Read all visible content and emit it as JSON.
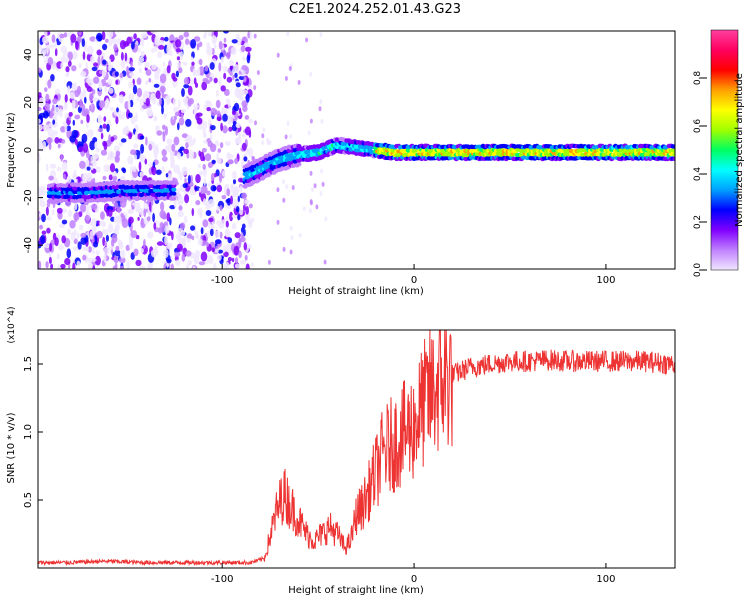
{
  "page": {
    "title": "C2E1.2024.252.01.43.G23"
  },
  "chart_data": [
    {
      "type": "heatmap",
      "xlabel": "Height of straight line (km)",
      "ylabel": "Frequency (Hz)",
      "xlim": [
        -196,
        136
      ],
      "ylim": [
        -50,
        50
      ],
      "xticks": [
        -100,
        0,
        100
      ],
      "xtick_labels": [
        "-100",
        "0",
        "100"
      ],
      "yticks": [
        -40,
        -20,
        0,
        20,
        40
      ],
      "ytick_labels": [
        "-40",
        "-20",
        "0",
        "20",
        "40"
      ],
      "colorbar": {
        "label": "Normalized spectral amplitude",
        "ticks": [
          0.0,
          0.2,
          0.4,
          0.6,
          0.8
        ],
        "tick_labels": [
          "0.0",
          "0.2",
          "0.4",
          "0.6",
          "0.8"
        ],
        "colors": [
          "#f0e6ff",
          "#c080ff",
          "#8000ff",
          "#0000ff",
          "#00a0ff",
          "#00ffff",
          "#00ff60",
          "#a0ff00",
          "#ffff00",
          "#ffa000",
          "#ff0000",
          "#ff0060",
          "#ff40a0"
        ]
      },
      "ridge": {
        "x": [
          -190,
          -170,
          -150,
          -125,
          -90,
          -80,
          -70,
          -60,
          -50,
          -40,
          -30,
          -20,
          -10,
          0,
          20,
          40,
          60,
          80,
          100,
          120,
          136
        ],
        "y": [
          -18,
          -18,
          -17,
          -17,
          -12,
          -8,
          -4,
          -2,
          -1,
          2,
          1,
          0,
          -1,
          -1,
          -1,
          -1,
          -1,
          -1,
          -1,
          -1,
          -1
        ]
      },
      "noise_region_x": [
        -196,
        -85
      ]
    },
    {
      "type": "line",
      "xlabel": "Height of straight line (km)",
      "ylabel": "SNR (10 * v/v)",
      "y_multiplier": "(x10^4)",
      "xlim": [
        -196,
        136
      ],
      "ylim": [
        0,
        1.75
      ],
      "xticks": [
        -100,
        0,
        100
      ],
      "xtick_labels": [
        "-100",
        "0",
        "100"
      ],
      "yticks": [
        0.5,
        1.0,
        1.5
      ],
      "ytick_labels": [
        "0.5",
        "1.0",
        "1.5"
      ],
      "line_color": "#ee3333",
      "series": [
        {
          "x": [
            -196,
            -180,
            -160,
            -140,
            -120,
            -100,
            -85,
            -78,
            -72,
            -68,
            -64,
            -60,
            -56,
            -52,
            -48,
            -44,
            -40,
            -36,
            -33,
            -30,
            -27,
            -24,
            -20,
            -16,
            -12,
            -8,
            -4,
            0,
            5,
            10,
            15,
            20,
            30,
            40,
            50,
            60,
            70,
            80,
            90,
            100,
            110,
            120,
            136
          ],
          "y": [
            0.04,
            0.04,
            0.05,
            0.04,
            0.04,
            0.04,
            0.04,
            0.07,
            0.4,
            0.55,
            0.45,
            0.35,
            0.25,
            0.2,
            0.25,
            0.3,
            0.25,
            0.15,
            0.2,
            0.4,
            0.45,
            0.55,
            0.7,
            0.85,
            0.9,
            0.95,
            1.0,
            1.05,
            1.2,
            1.3,
            1.38,
            1.42,
            1.48,
            1.5,
            1.52,
            1.52,
            1.53,
            1.52,
            1.52,
            1.52,
            1.52,
            1.52,
            1.5
          ]
        }
      ]
    }
  ]
}
